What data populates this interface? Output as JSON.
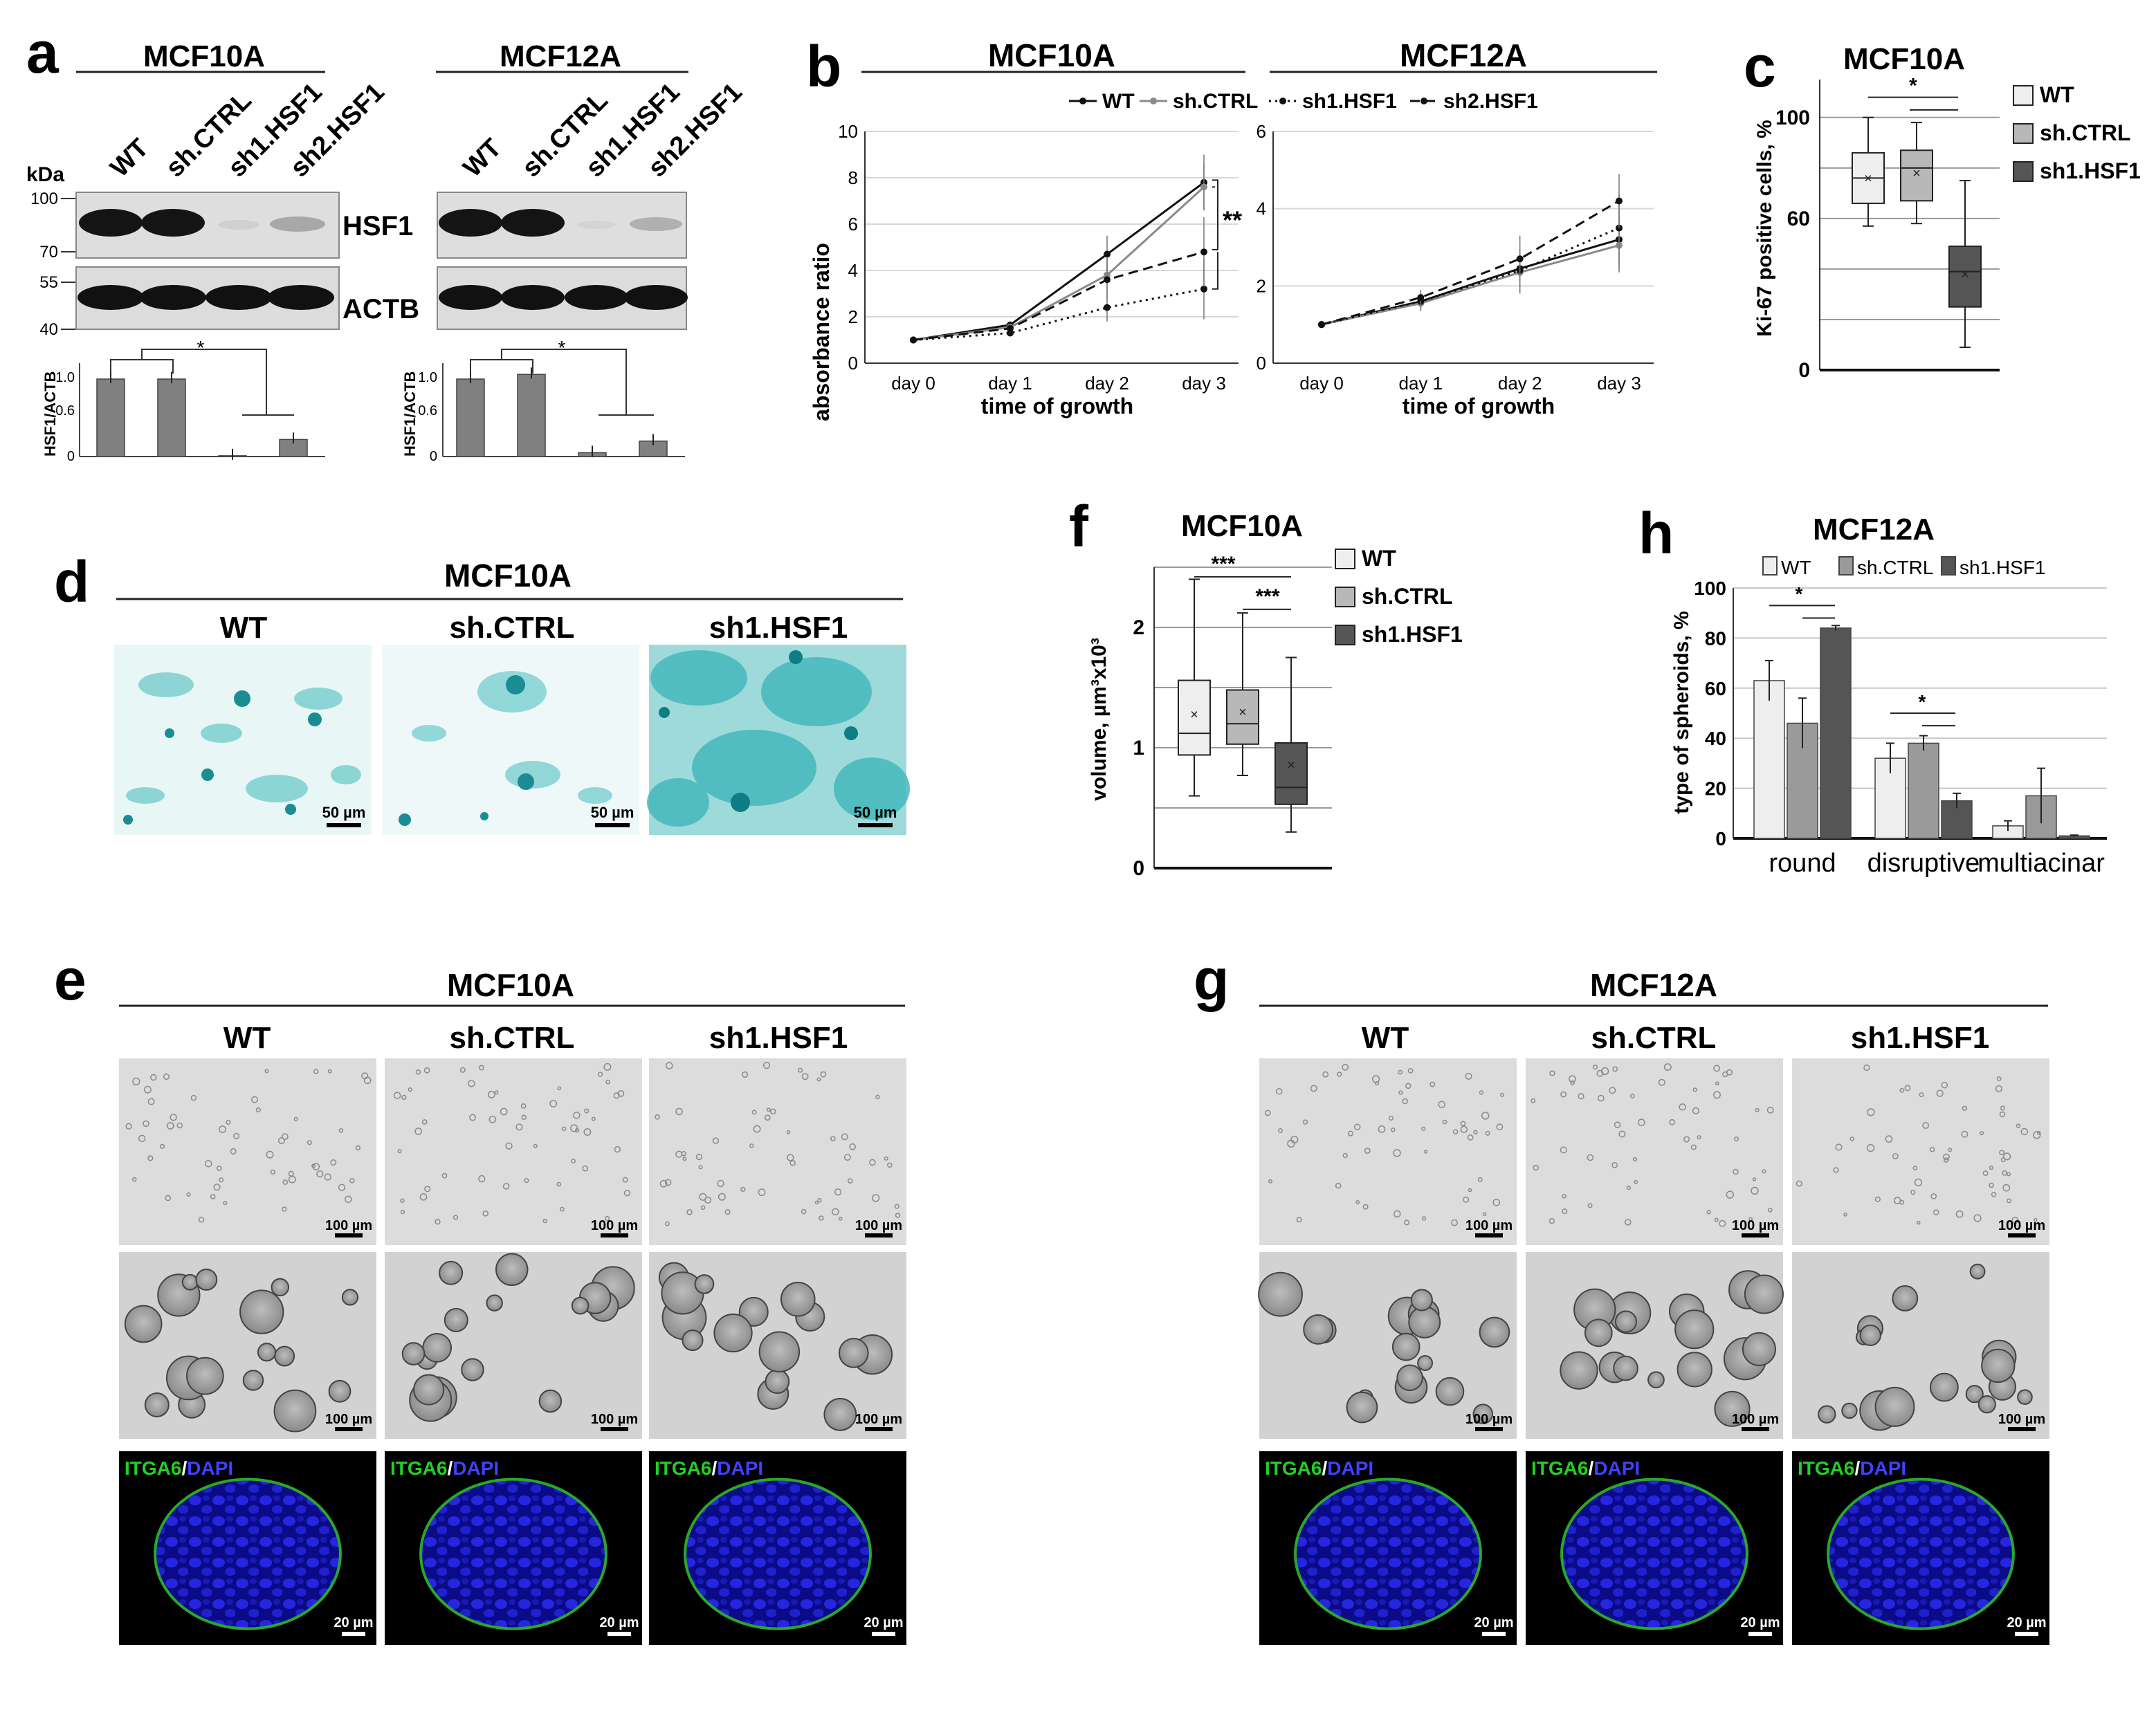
{
  "panels": {
    "a": {
      "letter": "a",
      "cells": [
        "MCF10A",
        "MCF12A"
      ],
      "lanes": [
        "WT",
        "sh.CTRL",
        "sh1.HSF1",
        "sh2.HSF1"
      ],
      "kda_label": "kDa",
      "markers": [
        "100",
        "70",
        "55",
        "40"
      ],
      "blots": [
        "HSF1",
        "ACTB"
      ],
      "ylabel": "HSF1/ACTB",
      "yticks": [
        "1.0",
        "0.6",
        "0"
      ],
      "sig": "*",
      "bars_mcf10a": [
        1.0,
        1.0,
        0.01,
        0.22
      ],
      "bars_mcf12a": [
        1.0,
        1.06,
        0.05,
        0.2
      ]
    },
    "b": {
      "letter": "b",
      "ylabel": "absorbance ratio",
      "xlabel": "time of growth",
      "sig": "**"
    },
    "c": {
      "letter": "c",
      "sig": "*"
    },
    "d": {
      "letter": "d",
      "cell": "MCF10A",
      "columns": [
        "WT",
        "sh.CTRL",
        "sh1.HSF1"
      ],
      "scale": "50 µm"
    },
    "e": {
      "letter": "e",
      "cell": "MCF10A",
      "columns": [
        "WT",
        "sh.CTRL",
        "sh1.HSF1"
      ],
      "scale_bf": "100 µm",
      "scale_if": "20 µm",
      "stain_green": "ITGA6",
      "stain_blue": "DAPI",
      "slash": "/"
    },
    "f": {
      "letter": "f",
      "sig1": "***",
      "sig2": "***"
    },
    "g": {
      "letter": "g",
      "cell": "MCF12A",
      "columns": [
        "WT",
        "sh.CTRL",
        "sh1.HSF1"
      ],
      "scale_bf": "100 µm",
      "scale_if": "20 µm",
      "stain_green": "ITGA6",
      "stain_blue": "DAPI",
      "slash": "/"
    },
    "h": {
      "letter": "h",
      "sig": "*"
    }
  },
  "chart_data": [
    {
      "id": "b-left",
      "type": "line",
      "title": "MCF10A",
      "xlabel": "time of growth",
      "ylabel": "absorbance ratio",
      "categories": [
        "day 0",
        "day 1",
        "day 2",
        "day 3"
      ],
      "ylim": [
        0,
        10
      ],
      "yticks": [
        0,
        2,
        4,
        6,
        8,
        10
      ],
      "grid": true,
      "legend_position": "top",
      "series": [
        {
          "name": "WT",
          "values": [
            1.0,
            1.65,
            4.7,
            7.8
          ],
          "errors": [
            0,
            0.15,
            0.8,
            1.2
          ],
          "style": "solid",
          "color": "#111111"
        },
        {
          "name": "sh.CTRL",
          "values": [
            1.0,
            1.55,
            3.8,
            7.6
          ],
          "errors": [
            0,
            0.15,
            0.8,
            1.0
          ],
          "style": "solid",
          "color": "#8a8a8a"
        },
        {
          "name": "sh1.HSF1",
          "values": [
            1.0,
            1.3,
            2.4,
            3.2
          ],
          "errors": [
            0,
            0.1,
            0.6,
            1.3
          ],
          "style": "dotted",
          "color": "#111111"
        },
        {
          "name": "sh2.HSF1",
          "values": [
            1.0,
            1.5,
            3.6,
            4.8
          ],
          "errors": [
            0,
            0.15,
            0.9,
            1.5
          ],
          "style": "dashed",
          "color": "#111111"
        }
      ],
      "significance": "**"
    },
    {
      "id": "b-right",
      "type": "line",
      "title": "MCF12A",
      "xlabel": "time of growth",
      "categories": [
        "day 0",
        "day 1",
        "day 2",
        "day 3"
      ],
      "ylim": [
        0,
        6
      ],
      "yticks": [
        0,
        2,
        4,
        6
      ],
      "grid": true,
      "series": [
        {
          "name": "WT",
          "values": [
            1.0,
            1.6,
            2.45,
            3.2
          ],
          "errors": [
            0,
            0.2,
            0.5,
            0.8
          ],
          "style": "solid",
          "color": "#111111"
        },
        {
          "name": "sh.CTRL",
          "values": [
            1.0,
            1.55,
            2.35,
            3.05
          ],
          "errors": [
            0,
            0.2,
            0.5,
            0.7
          ],
          "style": "solid",
          "color": "#8a8a8a"
        },
        {
          "name": "sh1.HSF1",
          "values": [
            1.0,
            1.6,
            2.4,
            3.5
          ],
          "errors": [
            0,
            0.25,
            0.6,
            0.9
          ],
          "style": "dotted",
          "color": "#111111"
        },
        {
          "name": "sh2.HSF1",
          "values": [
            1.0,
            1.7,
            2.7,
            4.2
          ],
          "errors": [
            0,
            0.2,
            0.6,
            0.7
          ],
          "style": "dashed",
          "color": "#111111"
        }
      ]
    },
    {
      "id": "c",
      "type": "box",
      "title": "MCF10A",
      "ylabel": "Ki-67 positive cells, %",
      "ylim": [
        0,
        115
      ],
      "yticks": [
        0,
        60,
        100
      ],
      "gridlines": [
        20,
        40,
        60,
        80,
        100,
        120
      ],
      "series": [
        {
          "name": "WT",
          "min": 57,
          "q1": 66,
          "median": 76,
          "q3": 86,
          "max": 100,
          "mean": 76,
          "color": "#eeeeee"
        },
        {
          "name": "sh.CTRL",
          "min": 58,
          "q1": 67,
          "median": 80,
          "q3": 87,
          "max": 98,
          "mean": 78,
          "color": "#b8b8b8"
        },
        {
          "name": "sh1.HSF1",
          "min": 9,
          "q1": 25,
          "median": 39,
          "q3": 49,
          "max": 75,
          "mean": 38,
          "color": "#555555"
        }
      ],
      "legend": [
        "WT",
        "sh.CTRL",
        "sh1.HSF1"
      ],
      "significance": "*"
    },
    {
      "id": "f",
      "type": "box",
      "title": "MCF10A",
      "ylabel": "volume, µm³x10³",
      "ylim": [
        0,
        2.5
      ],
      "yticks": [
        0,
        1.0,
        2.0
      ],
      "gridlines": [
        0.5,
        1.0,
        1.5,
        2.0,
        2.5
      ],
      "series": [
        {
          "name": "WT",
          "min": 0.6,
          "q1": 0.94,
          "median": 1.12,
          "q3": 1.56,
          "max": 2.4,
          "mean": 1.28,
          "color": "#eeeeee"
        },
        {
          "name": "sh.CTRL",
          "min": 0.77,
          "q1": 1.03,
          "median": 1.2,
          "q3": 1.48,
          "max": 2.12,
          "mean": 1.3,
          "color": "#b8b8b8"
        },
        {
          "name": "sh1.HSF1",
          "min": 0.3,
          "q1": 0.53,
          "median": 0.67,
          "q3": 1.04,
          "max": 1.75,
          "mean": 0.86,
          "color": "#555555"
        }
      ],
      "legend": [
        "WT",
        "sh.CTRL",
        "sh1.HSF1"
      ],
      "significance": [
        "***",
        "***"
      ]
    },
    {
      "id": "h",
      "type": "bar",
      "title": "MCF12A",
      "ylabel": "type of spheroids, %",
      "categories": [
        "round",
        "disruptive",
        "multiacinar"
      ],
      "ylim": [
        0,
        100
      ],
      "yticks": [
        0,
        20,
        40,
        60,
        80,
        100
      ],
      "series": [
        {
          "name": "WT",
          "values": [
            63,
            32,
            5
          ],
          "errors": [
            8,
            6,
            2
          ],
          "color": "#eeeeee"
        },
        {
          "name": "sh.CTRL",
          "values": [
            46,
            38,
            17
          ],
          "errors": [
            10,
            3,
            11
          ],
          "color": "#9a9a9a"
        },
        {
          "name": "sh1.HSF1",
          "values": [
            84,
            15,
            1
          ],
          "errors": [
            1,
            3,
            0.3
          ],
          "color": "#555555"
        }
      ],
      "significance": "*"
    }
  ]
}
